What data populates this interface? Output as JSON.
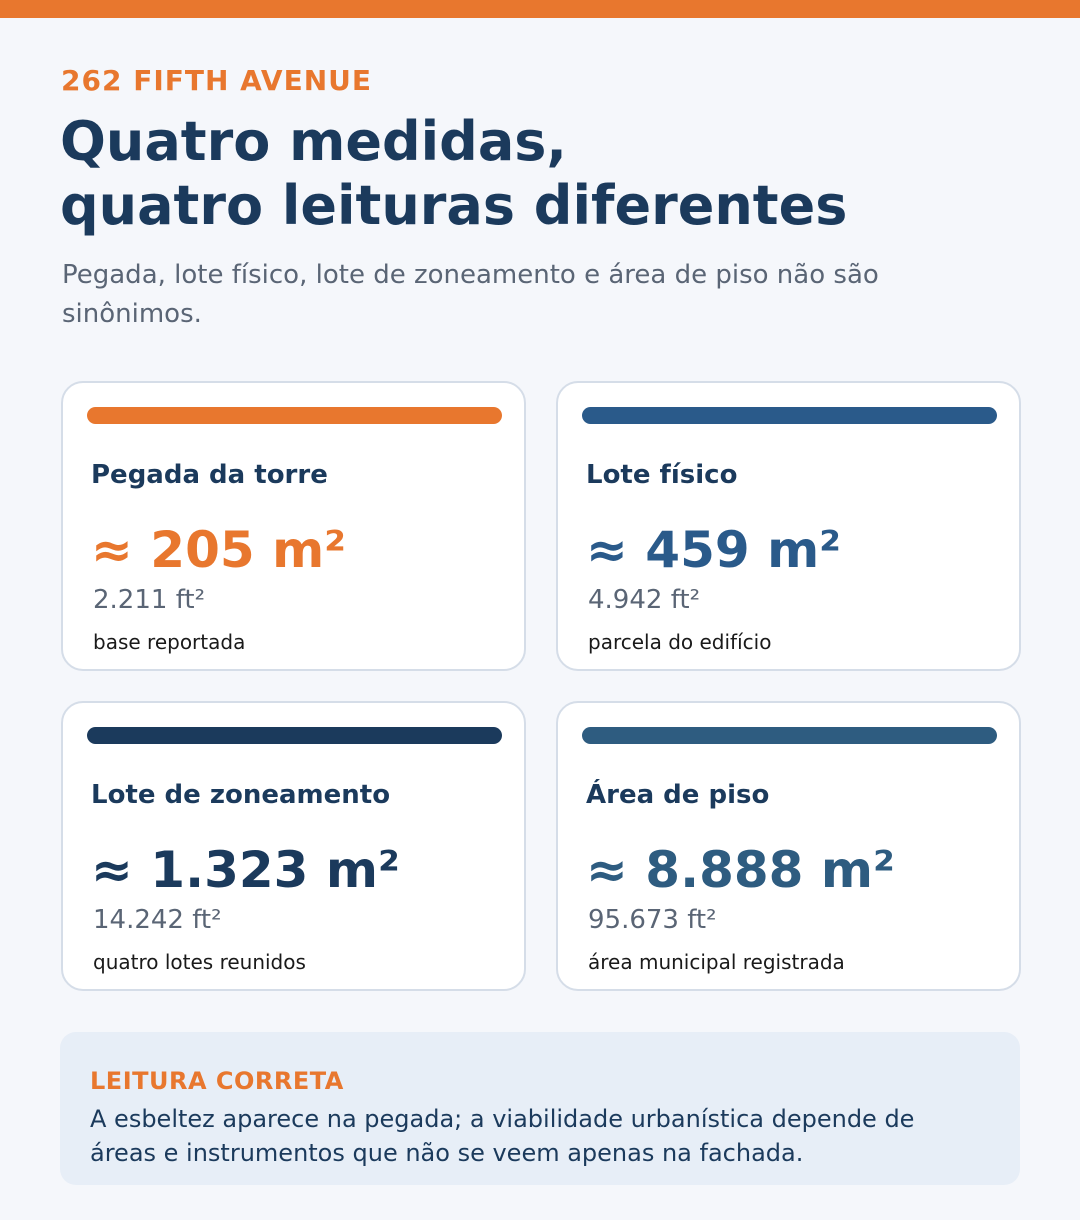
{
  "header": {
    "eyebrow": "262 FIFTH AVENUE",
    "title_line1": "Quatro medidas,",
    "title_line2": "quatro leituras diferentes",
    "subtitle": "Pegada, lote físico, lote de zoneamento e área de piso não são sinônimos."
  },
  "cards": [
    {
      "label": "Pegada da torre",
      "value": "≈ 205 m²",
      "imperial": "2.211 ft²",
      "note": "base reportada",
      "color": "#e8772e"
    },
    {
      "label": "Lote físico",
      "value": "≈ 459 m²",
      "imperial": "4.942 ft²",
      "note": "parcela do edifício",
      "color": "#2a5a8a"
    },
    {
      "label": "Lote de zoneamento",
      "value": "≈ 1.323 m²",
      "imperial": "14.242 ft²",
      "note": "quatro lotes reunidos",
      "color": "#1b3a5c"
    },
    {
      "label": "Área de piso",
      "value": "≈ 8.888 m²",
      "imperial": "95.673 ft²",
      "note": "área municipal registrada",
      "color": "#2e5c80"
    }
  ],
  "callout": {
    "title": "LEITURA CORRETA",
    "text": "A esbeltez aparece na pegada; a viabilidade urbanística depende de áreas e instrumentos que não se veem apenas na fachada."
  },
  "colors": {
    "accent": "#e8772e",
    "navy": "#1b3a5c",
    "background": "#f5f7fb",
    "callout_background": "#e7eef7"
  }
}
